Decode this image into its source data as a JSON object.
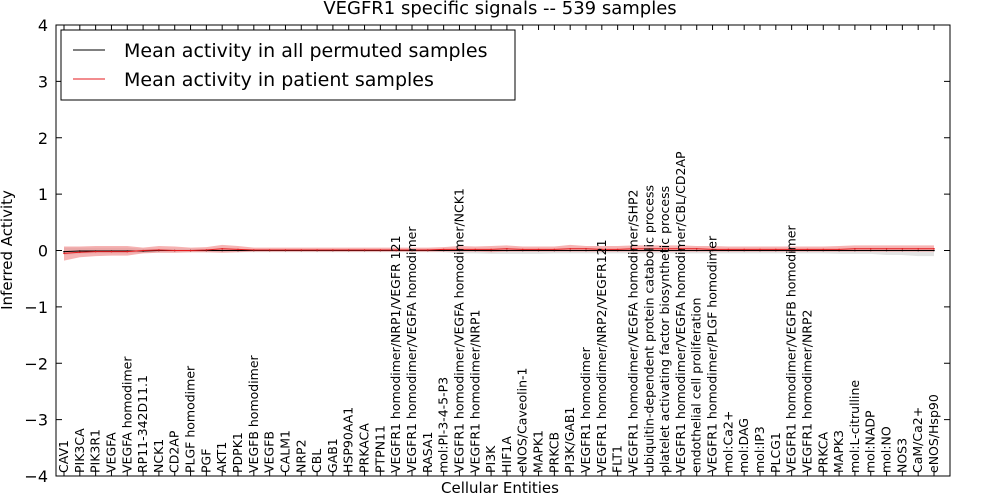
{
  "chart_data": {
    "type": "line",
    "title": "VEGFR1 specific signals -- 539 samples",
    "xlabel": "Cellular Entities",
    "ylabel": "Inferred Activity",
    "ylim": [
      -4,
      4
    ],
    "yticks": [
      -4,
      -3,
      -2,
      -1,
      0,
      1,
      2,
      3,
      4
    ],
    "ytick_labels": [
      "−4",
      "−3",
      "−2",
      "−1",
      "0",
      "1",
      "2",
      "3",
      "4"
    ],
    "grid": false,
    "legend": {
      "placement": "top-left",
      "entries": [
        {
          "label": "Mean activity in all permuted samples",
          "color": "#000000"
        },
        {
          "label": "Mean activity in patient samples",
          "color": "#e41a1c"
        }
      ]
    },
    "categories": [
      "CAV1",
      "PIK3CA",
      "PIK3R1",
      "VEGFA",
      "VEGFA homodimer",
      "RP11-342D11.1",
      "NCK1",
      "CD2AP",
      "PLGF homodimer",
      "PGF",
      "AKT1",
      "PDPK1",
      "VEGFB homodimer",
      "VEGFB",
      "CALM1",
      "NRP2",
      "CBL",
      "GAB1",
      "HSP90AA1",
      "PRKACA",
      "PTPN11",
      "VEGFR1 homodimer/NRP1/VEGFR 121",
      "VEGFR1 homodimer/VEGFA homodimer",
      "RASA1",
      "mol:PI-3-4-5-P3",
      "VEGFR1 homodimer/VEGFA homodimer/NCK1",
      "VEGFR1 homodimer/NRP1",
      "PI3K",
      "HIF1A",
      "eNOS/Caveolin-1",
      "MAPK1",
      "PRKCB",
      "PI3K/GAB1",
      "VEGFR1 homodimer",
      "VEGFR1 homodimer/NRP2/VEGFR121",
      "FLT1",
      "VEGFR1 homodimer/VEGFA homodimer/SHP2",
      "ubiquitin-dependent protein catabolic process",
      "platelet activating factor biosynthetic process",
      "VEGFR1 homodimer/VEGFA homodimer/CBL/CD2AP",
      "endothelial cell proliferation",
      "VEGFR1 homodimer/PLGF homodimer",
      "mol:Ca2+",
      "mol:DAG",
      "mol:IP3",
      "PLCG1",
      "VEGFR1 homodimer/VEGFB homodimer",
      "VEGFR1 homodimer/NRP2",
      "PRKCA",
      "MAPK3",
      "mol:L-citrulline",
      "mol:NADP",
      "mol:NO",
      "NOS3",
      "CaM/Ca2+",
      "eNOS/Hsp90"
    ],
    "series": [
      {
        "name": "Mean activity in all permuted samples",
        "color": "#000000",
        "band_color": "#c8c8c8",
        "values": [
          -0.02,
          -0.01,
          -0.01,
          -0.01,
          -0.01,
          -0.01,
          0.0,
          0.0,
          0.0,
          0.0,
          0.0,
          0.0,
          0.0,
          0.0,
          0.0,
          0.0,
          0.0,
          0.0,
          0.0,
          0.0,
          0.0,
          0.0,
          0.0,
          0.0,
          0.0,
          0.0,
          0.0,
          0.0,
          0.0,
          0.0,
          0.0,
          0.0,
          0.0,
          0.0,
          0.0,
          0.0,
          0.0,
          0.0,
          0.0,
          0.0,
          0.0,
          0.0,
          0.0,
          0.0,
          0.0,
          0.0,
          0.0,
          0.0,
          0.0,
          0.0,
          0.0,
          0.0,
          0.0,
          0.0,
          0.0,
          0.0
        ],
        "upper": [
          0.05,
          0.05,
          0.05,
          0.05,
          0.05,
          0.03,
          0.03,
          0.03,
          0.03,
          0.03,
          0.03,
          0.03,
          0.02,
          0.02,
          0.02,
          0.02,
          0.02,
          0.02,
          0.02,
          0.02,
          0.02,
          0.02,
          0.02,
          0.02,
          0.02,
          0.02,
          0.02,
          0.02,
          0.02,
          0.02,
          0.02,
          0.02,
          0.02,
          0.02,
          0.02,
          0.02,
          0.02,
          0.02,
          0.02,
          0.02,
          0.02,
          0.02,
          0.02,
          0.02,
          0.02,
          0.02,
          0.02,
          0.02,
          0.02,
          0.02,
          0.02,
          0.02,
          0.02,
          0.02,
          0.02,
          0.02
        ],
        "lower": [
          -0.08,
          -0.06,
          -0.05,
          -0.05,
          -0.05,
          -0.04,
          -0.03,
          -0.03,
          -0.03,
          -0.03,
          -0.03,
          -0.03,
          -0.03,
          -0.03,
          -0.03,
          -0.03,
          -0.03,
          -0.03,
          -0.03,
          -0.03,
          -0.03,
          -0.03,
          -0.03,
          -0.03,
          -0.03,
          -0.05,
          -0.05,
          -0.06,
          -0.06,
          -0.06,
          -0.06,
          -0.05,
          -0.05,
          -0.05,
          -0.05,
          -0.05,
          -0.05,
          -0.05,
          -0.05,
          -0.05,
          -0.05,
          -0.05,
          -0.05,
          -0.05,
          -0.05,
          -0.05,
          -0.05,
          -0.05,
          -0.05,
          -0.06,
          -0.06,
          -0.06,
          -0.08,
          -0.08,
          -0.1,
          -0.1
        ]
      },
      {
        "name": "Mean activity in patient samples",
        "color": "#e41a1c",
        "band_color": "#f08080",
        "values": [
          -0.05,
          -0.03,
          -0.02,
          -0.02,
          -0.02,
          0.0,
          0.01,
          0.0,
          0.0,
          0.01,
          0.03,
          0.02,
          0.01,
          0.01,
          0.01,
          0.01,
          0.01,
          0.01,
          0.01,
          0.01,
          0.01,
          0.01,
          0.01,
          0.01,
          0.02,
          0.02,
          0.02,
          0.02,
          0.03,
          0.02,
          0.02,
          0.02,
          0.03,
          0.03,
          0.02,
          0.02,
          0.03,
          0.03,
          0.03,
          0.03,
          0.03,
          0.02,
          0.02,
          0.02,
          0.02,
          0.02,
          0.02,
          0.02,
          0.02,
          0.02,
          0.03,
          0.03,
          0.03,
          0.03,
          0.03,
          0.03
        ],
        "upper": [
          0.07,
          0.07,
          0.08,
          0.08,
          0.08,
          0.05,
          0.08,
          0.07,
          0.05,
          0.06,
          0.1,
          0.08,
          0.05,
          0.05,
          0.05,
          0.05,
          0.05,
          0.05,
          0.05,
          0.05,
          0.05,
          0.05,
          0.05,
          0.05,
          0.06,
          0.08,
          0.07,
          0.08,
          0.09,
          0.07,
          0.07,
          0.07,
          0.1,
          0.08,
          0.08,
          0.08,
          0.09,
          0.09,
          0.09,
          0.09,
          0.08,
          0.08,
          0.07,
          0.07,
          0.07,
          0.07,
          0.07,
          0.07,
          0.07,
          0.08,
          0.09,
          0.09,
          0.09,
          0.09,
          0.09,
          0.09
        ],
        "lower": [
          -0.18,
          -0.12,
          -0.1,
          -0.09,
          -0.09,
          -0.05,
          -0.04,
          -0.04,
          -0.03,
          -0.03,
          -0.04,
          -0.03,
          -0.02,
          -0.02,
          -0.02,
          -0.02,
          -0.02,
          -0.02,
          -0.02,
          -0.02,
          -0.02,
          -0.02,
          -0.02,
          -0.02,
          -0.02,
          -0.02,
          -0.02,
          -0.03,
          -0.02,
          -0.02,
          -0.02,
          -0.02,
          -0.02,
          -0.02,
          -0.02,
          -0.02,
          -0.02,
          -0.02,
          -0.02,
          -0.02,
          -0.02,
          -0.02,
          -0.02,
          -0.02,
          -0.02,
          -0.02,
          -0.02,
          -0.02,
          -0.02,
          -0.02,
          -0.02,
          -0.02,
          -0.02,
          -0.02,
          -0.02,
          -0.02
        ]
      }
    ]
  }
}
